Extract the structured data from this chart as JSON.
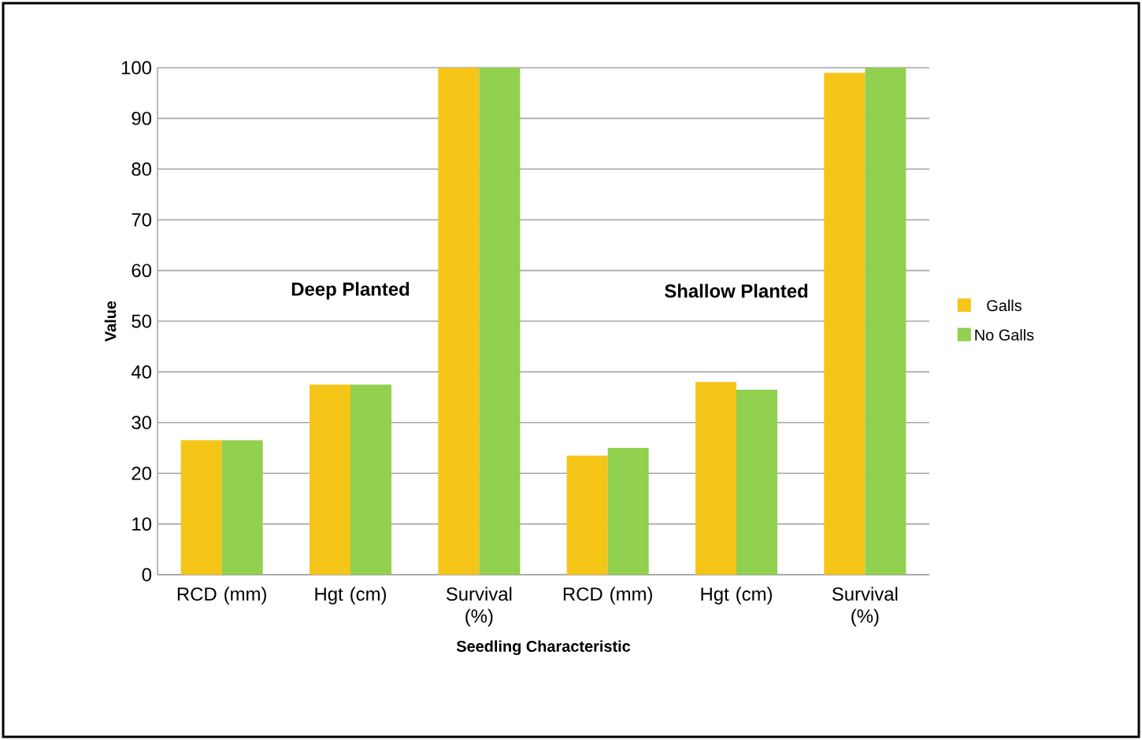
{
  "chart_data": {
    "type": "bar",
    "xlabel": "Seedling Characteristic",
    "ylabel": "Value",
    "categories": [
      "RCD (mm)",
      "Hgt (cm)",
      "Survival (%)",
      "RCD (mm)",
      "Hgt (cm)",
      "Survival (%)"
    ],
    "series": [
      {
        "name": "Galls",
        "color": "#f5c518",
        "values": [
          26.5,
          37.5,
          100,
          23.5,
          38,
          99
        ]
      },
      {
        "name": "No Galls",
        "color": "#92d050",
        "values": [
          26.5,
          37.5,
          100,
          25,
          36.5,
          100
        ]
      }
    ],
    "annotations": [
      "Deep Planted",
      "Shallow Planted"
    ],
    "ylim": [
      0,
      100
    ],
    "yticks": [
      0,
      10,
      20,
      30,
      40,
      50,
      60,
      70,
      80,
      90,
      100
    ],
    "grid": "y",
    "legend": "right"
  }
}
